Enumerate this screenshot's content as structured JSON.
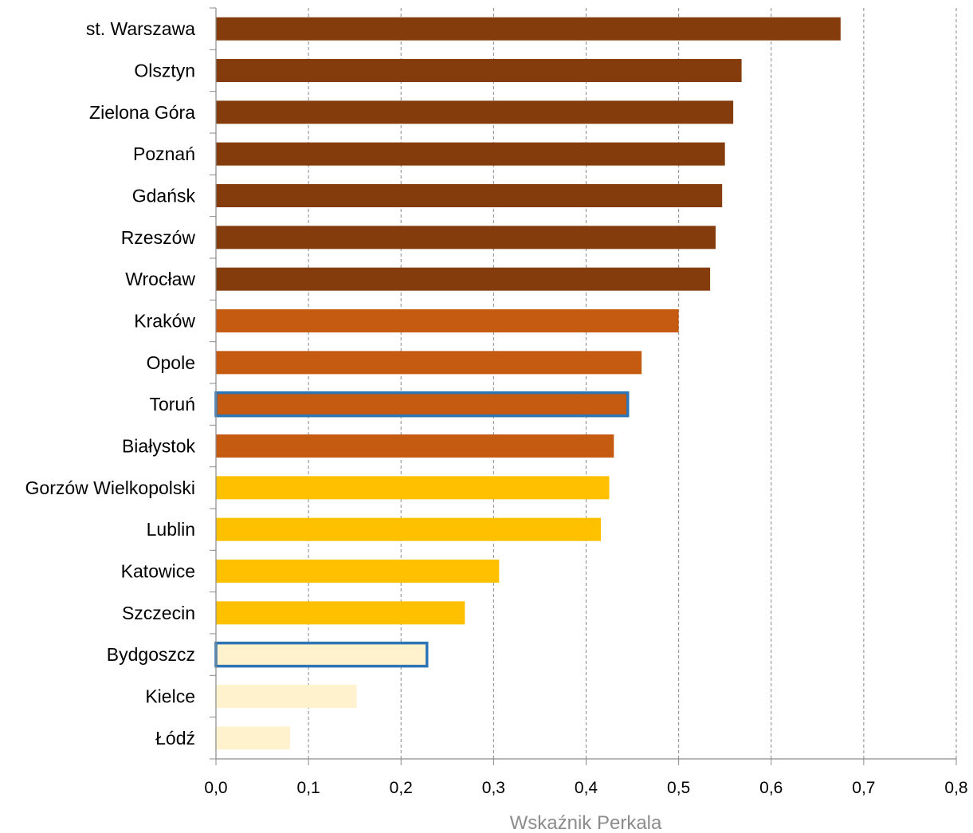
{
  "chart_data": {
    "type": "bar",
    "orientation": "horizontal",
    "xlabel": "Wskaźnik Perkala",
    "xlim": [
      0,
      0.8
    ],
    "x_ticks": [
      0.0,
      0.1,
      0.2,
      0.3,
      0.4,
      0.5,
      0.6,
      0.7,
      0.8
    ],
    "x_tick_labels": [
      "0,0",
      "0,1",
      "0,2",
      "0,3",
      "0,4",
      "0,5",
      "0,6",
      "0,7",
      "0,8"
    ],
    "grid": "vertical dashed",
    "colors": {
      "dark": "#843c0c",
      "medium": "#c55a11",
      "light": "#ffc000",
      "pale": "#fff2cc",
      "highlight_border": "#2e75b6"
    },
    "categories": [
      "st. Warszawa",
      "Olsztyn",
      "Zielona Góra",
      "Poznań",
      "Gdańsk",
      "Rzeszów",
      "Wrocław",
      "Kraków",
      "Opole",
      "Toruń",
      "Białystok",
      "Gorzów Wielkopolski",
      "Lublin",
      "Katowice",
      "Szczecin",
      "Bydgoszcz",
      "Kielce",
      "Łódź"
    ],
    "values": [
      0.675,
      0.568,
      0.559,
      0.55,
      0.547,
      0.54,
      0.534,
      0.5,
      0.46,
      0.445,
      0.43,
      0.425,
      0.416,
      0.306,
      0.269,
      0.228,
      0.152,
      0.08
    ],
    "bar_color_groups": [
      "dark",
      "dark",
      "dark",
      "dark",
      "dark",
      "dark",
      "dark",
      "medium",
      "medium",
      "medium",
      "medium",
      "light",
      "light",
      "light",
      "light",
      "pale",
      "pale",
      "pale"
    ],
    "highlighted": [
      "Toruń",
      "Bydgoszcz"
    ]
  }
}
